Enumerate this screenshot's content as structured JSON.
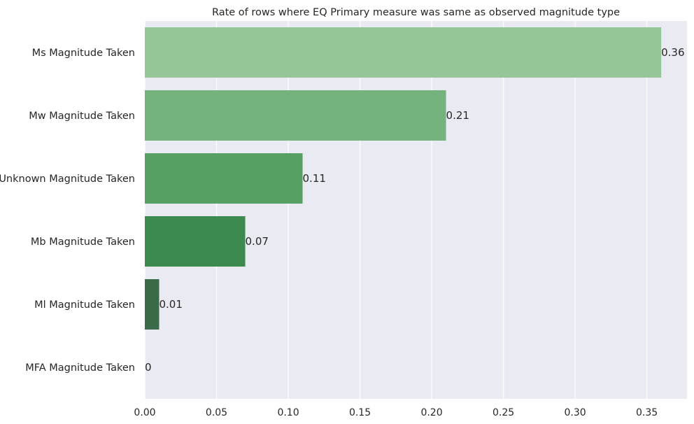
{
  "chart_data": {
    "type": "bar",
    "orientation": "horizontal",
    "title": "Rate of rows where EQ Primary measure was same as observed magnitude type",
    "xlabel": "",
    "ylabel": "",
    "categories": [
      "Ms Magnitude Taken",
      "Mw Magnitude Taken",
      "Unknown Magnitude Taken",
      "Mb Magnitude Taken",
      "Ml Magnitude Taken",
      "MFA Magnitude Taken"
    ],
    "values": [
      0.36,
      0.21,
      0.11,
      0.07,
      0.01,
      0
    ],
    "data_labels": [
      "0.36",
      "0.21",
      "0.11",
      "0.07",
      "0.01",
      "0"
    ],
    "xlim": [
      0,
      0.378
    ],
    "xticks": [
      0.0,
      0.05,
      0.1,
      0.15,
      0.2,
      0.25,
      0.3,
      0.35
    ],
    "xtick_labels": [
      "0.00",
      "0.05",
      "0.10",
      "0.15",
      "0.20",
      "0.25",
      "0.30",
      "0.35"
    ],
    "grid": true,
    "legend": "none",
    "colors": [
      "#95c698",
      "#74b27e",
      "#56a064",
      "#3d8a4f",
      "#3a6a47",
      "#2a4a33"
    ],
    "background_color": "#eaeaf2"
  }
}
